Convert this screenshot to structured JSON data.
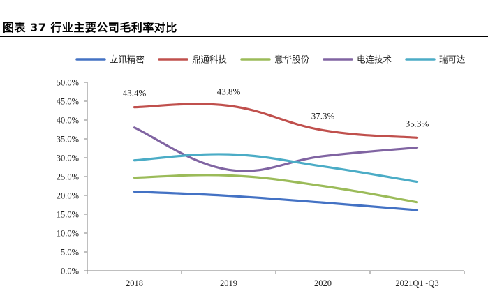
{
  "figure_title": "图表 37 行业主要公司毛利率对比",
  "colors": {
    "axis": "#7f7f7f",
    "text": "#222222"
  },
  "chart_data": {
    "type": "line",
    "title": "",
    "xlabel": "",
    "ylabel": "",
    "categories": [
      "2018",
      "2019",
      "2020",
      "2021Q1~Q3"
    ],
    "ylim": [
      0,
      50
    ],
    "yticks": [
      "0.0%",
      "5.0%",
      "10.0%",
      "15.0%",
      "20.0%",
      "25.0%",
      "30.0%",
      "35.0%",
      "40.0%",
      "45.0%",
      "50.0%"
    ],
    "grid": false,
    "legend_position": "top",
    "smooth": true,
    "series": [
      {
        "name": "立讯精密",
        "color": "#4472c4",
        "values": [
          21.0,
          19.9,
          18.1,
          16.1
        ]
      },
      {
        "name": "鼎通科技",
        "color": "#c0504d",
        "values": [
          43.4,
          43.8,
          37.3,
          35.3
        ],
        "data_labels": [
          "43.4%",
          "43.8%",
          "37.3%",
          "35.3%"
        ]
      },
      {
        "name": "意华股份",
        "color": "#9bbb59",
        "values": [
          24.7,
          25.3,
          22.5,
          18.2
        ]
      },
      {
        "name": "电连技术",
        "color": "#8064a2",
        "values": [
          38.0,
          26.8,
          30.4,
          32.7
        ]
      },
      {
        "name": "瑞可达",
        "color": "#4bacc6",
        "values": [
          29.3,
          30.9,
          27.7,
          23.6
        ]
      }
    ]
  }
}
